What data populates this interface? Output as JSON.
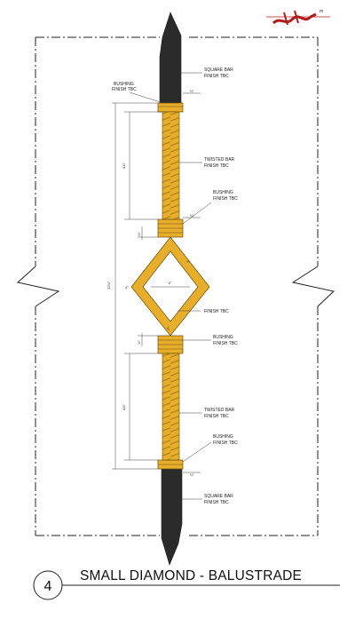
{
  "logo_text": "m",
  "drawing_number": "4",
  "drawing_title": "SMALL DIAMOND - BALUSTRADE",
  "callouts": {
    "bushing_top": [
      "BUSHING",
      "FINISH TBC"
    ],
    "square_bar_top": [
      "SQUARE BAR",
      "FINISH TBC"
    ],
    "twisted_bar_top": [
      "TWISTED BAR",
      "FINISH TBC"
    ],
    "bushing_mid_upper": [
      "BUSHING",
      "FINISH TBC"
    ],
    "finish_diamond": [
      "FINISH TBC"
    ],
    "bushing_mid_lower": [
      "BUSHING",
      "FINISH TBC"
    ],
    "twisted_bar_bottom": [
      "TWISTED BAR",
      "FINISH TBC"
    ],
    "bushing_bottom": [
      "BUSHING",
      "FINISH TBC"
    ],
    "square_bar_bottom": [
      "SQUARE BAR",
      "FINISH TBC"
    ]
  },
  "dimensions": {
    "overall_height": "12⅛\"",
    "upper_twisted_length": "4⅞\"",
    "lower_twisted_length": "4⅞\"",
    "diamond_height": "4\"",
    "diamond_width": "2\"",
    "diamond_side": "2\"",
    "diamond_side_lower": "2\"",
    "bushing_upper": "¾\"",
    "bushing_lower": "¾\"",
    "bushing_top_small": "⅛\"",
    "bushing_mid_small": "⅛\"",
    "bushing_bottom_small": "⅛\""
  },
  "colors": {
    "gold": "#E7AE2B",
    "gold_dark": "#B8861A",
    "bar_dark": "#2B2B2B",
    "line": "#222222",
    "logo_red": "#B01A1A"
  }
}
